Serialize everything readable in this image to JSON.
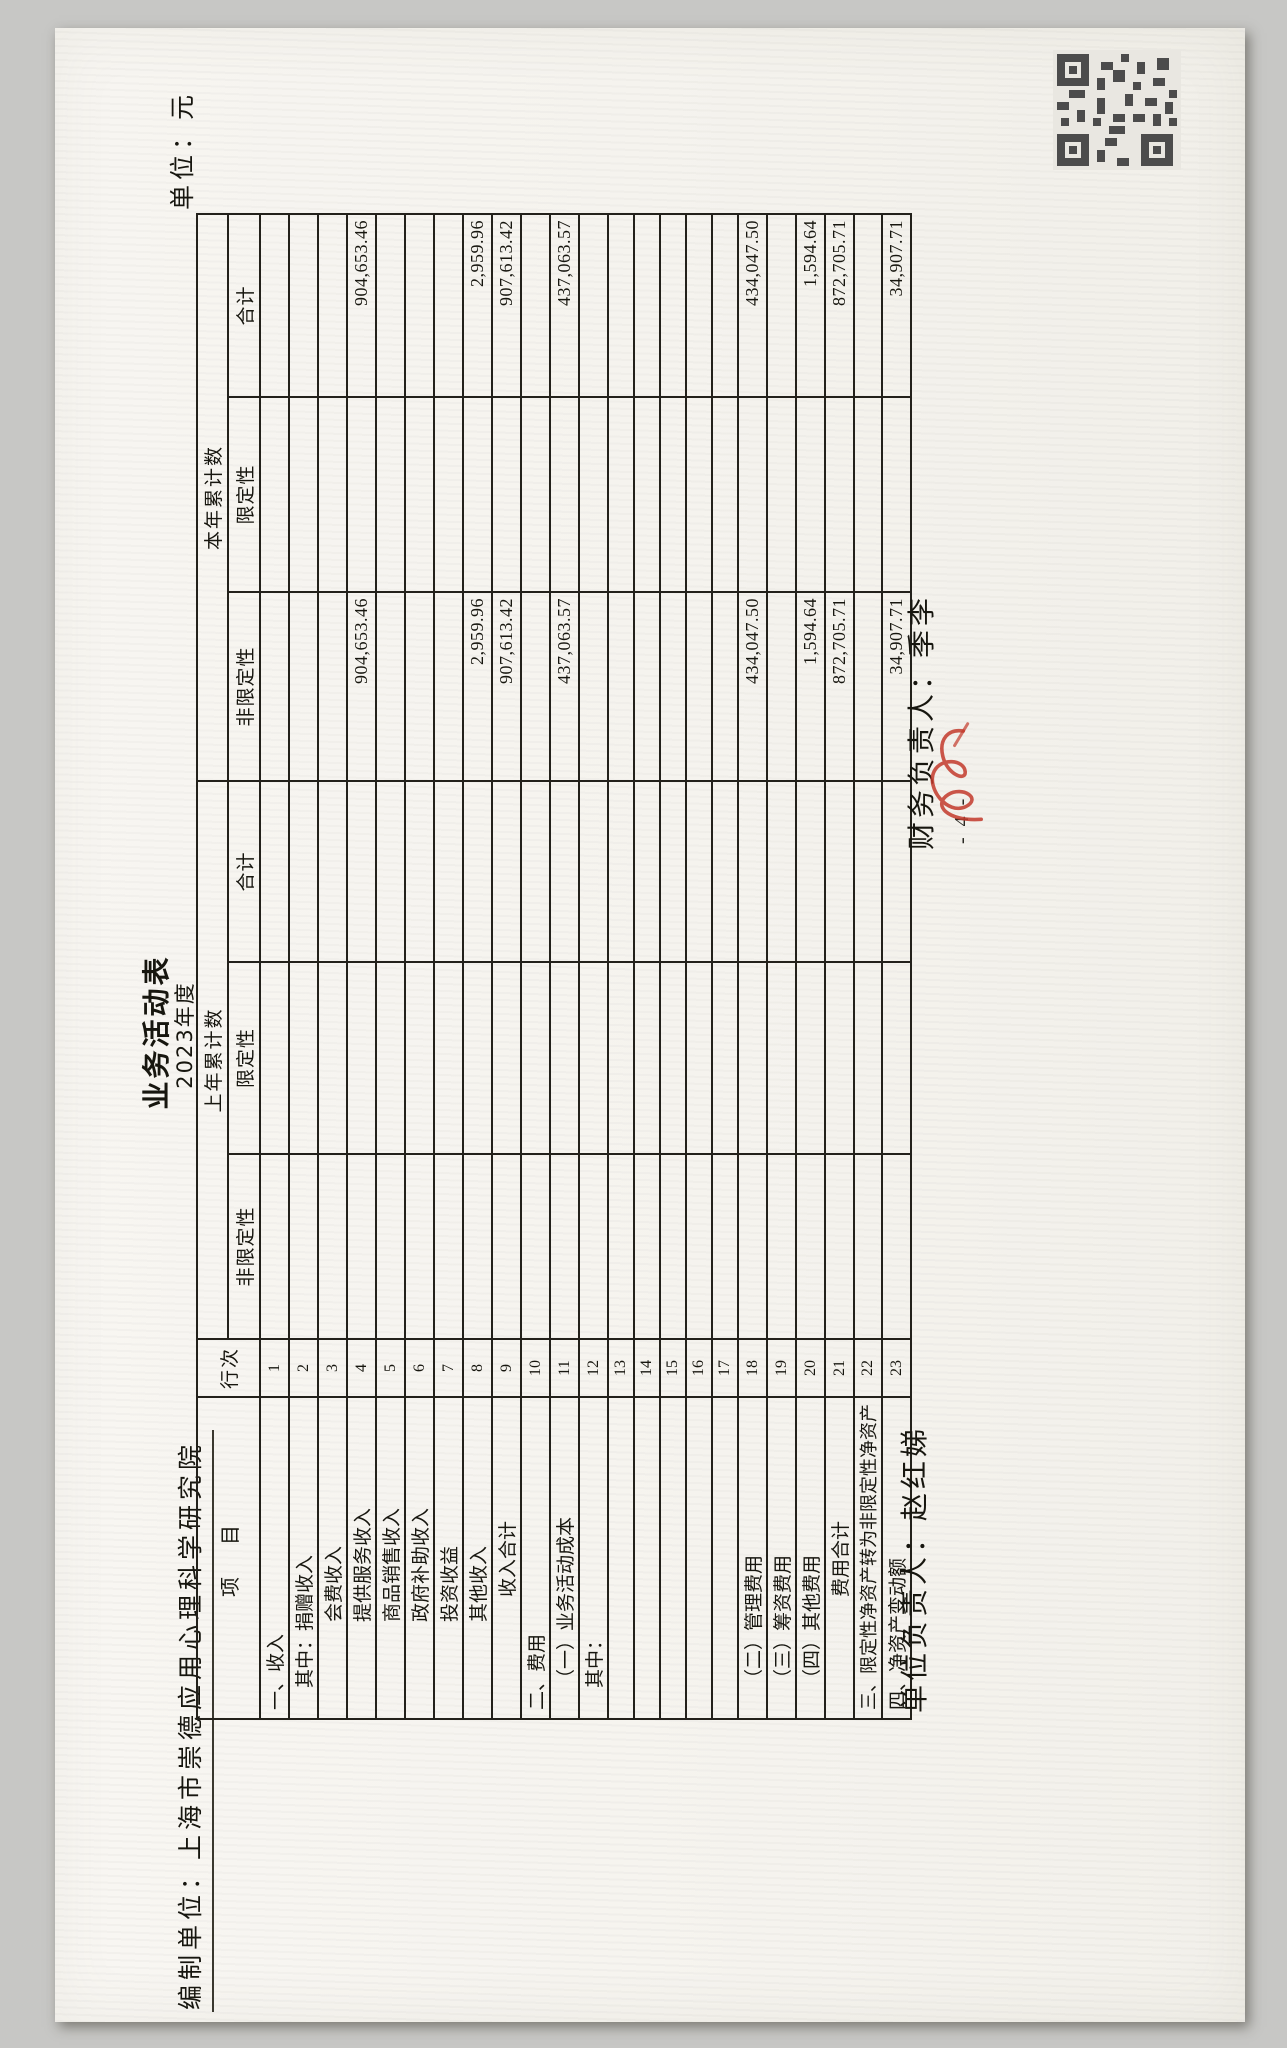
{
  "page": {
    "title": "业务活动表",
    "subtitle": "2023年度",
    "prepared_by_label": "编制单位：",
    "prepared_by": "上海市崇德应用心理科学研究院",
    "unit_note": "单位：元",
    "page_number": "- 4 -"
  },
  "table": {
    "headers": {
      "item": "项　目",
      "line_no": "行次",
      "prior_year_group": "上年累计数",
      "current_year_group": "本年累计数",
      "unrestricted": "非限定性",
      "restricted": "限定性",
      "total": "合计"
    },
    "rows": [
      {
        "no": "1",
        "label": "一、收入",
        "indent": 0,
        "center": false,
        "cells": [
          "",
          "",
          "",
          "",
          "",
          ""
        ]
      },
      {
        "no": "2",
        "label": "其中：捐赠收入",
        "indent": 22,
        "center": false,
        "cells": [
          "",
          "",
          "",
          "",
          "",
          ""
        ]
      },
      {
        "no": "3",
        "label": "会费收入",
        "indent": 88,
        "center": false,
        "cells": [
          "",
          "",
          "",
          "",
          "",
          ""
        ]
      },
      {
        "no": "4",
        "label": "提供服务收入",
        "indent": 88,
        "center": false,
        "cells": [
          "",
          "",
          "",
          "904,653.46",
          "",
          "904,653.46"
        ]
      },
      {
        "no": "5",
        "label": "商品销售收入",
        "indent": 88,
        "center": false,
        "cells": [
          "",
          "",
          "",
          "",
          "",
          ""
        ]
      },
      {
        "no": "6",
        "label": "政府补助收入",
        "indent": 88,
        "center": false,
        "cells": [
          "",
          "",
          "",
          "",
          "",
          ""
        ]
      },
      {
        "no": "7",
        "label": "投资收益",
        "indent": 88,
        "center": false,
        "cells": [
          "",
          "",
          "",
          "",
          "",
          ""
        ]
      },
      {
        "no": "8",
        "label": "其他收入",
        "indent": 88,
        "center": false,
        "cells": [
          "",
          "",
          "",
          "2,959.96",
          "",
          "2,959.96"
        ]
      },
      {
        "no": "9",
        "label": "收入合计",
        "indent": 0,
        "center": true,
        "cells": [
          "",
          "",
          "",
          "907,613.42",
          "",
          "907,613.42"
        ]
      },
      {
        "no": "10",
        "label": "二、费用",
        "indent": 0,
        "center": false,
        "cells": [
          "",
          "",
          "",
          "",
          "",
          ""
        ]
      },
      {
        "no": "11",
        "label": "（一）业务活动成本",
        "indent": 22,
        "center": false,
        "cells": [
          "",
          "",
          "",
          "437,063.57",
          "",
          "437,063.57"
        ]
      },
      {
        "no": "12",
        "label": "其中：",
        "indent": 22,
        "center": false,
        "cells": [
          "",
          "",
          "",
          "",
          "",
          ""
        ]
      },
      {
        "no": "13",
        "label": "",
        "indent": 0,
        "center": false,
        "cells": [
          "",
          "",
          "",
          "",
          "",
          ""
        ]
      },
      {
        "no": "14",
        "label": "",
        "indent": 0,
        "center": false,
        "cells": [
          "",
          "",
          "",
          "",
          "",
          ""
        ]
      },
      {
        "no": "15",
        "label": "",
        "indent": 0,
        "center": false,
        "cells": [
          "",
          "",
          "",
          "",
          "",
          ""
        ]
      },
      {
        "no": "16",
        "label": "",
        "indent": 0,
        "center": false,
        "cells": [
          "",
          "",
          "",
          "",
          "",
          ""
        ]
      },
      {
        "no": "17",
        "label": "",
        "indent": 0,
        "center": false,
        "cells": [
          "",
          "",
          "",
          "",
          "",
          ""
        ]
      },
      {
        "no": "18",
        "label": "（二）管理费用",
        "indent": 22,
        "center": false,
        "cells": [
          "",
          "",
          "",
          "434,047.50",
          "",
          "434,047.50"
        ]
      },
      {
        "no": "19",
        "label": "（三）筹资费用",
        "indent": 22,
        "center": false,
        "cells": [
          "",
          "",
          "",
          "",
          "",
          ""
        ]
      },
      {
        "no": "20",
        "label": "（四）其他费用",
        "indent": 22,
        "center": false,
        "cells": [
          "",
          "",
          "",
          "1,594.64",
          "",
          "1,594.64"
        ]
      },
      {
        "no": "21",
        "label": "费用合计",
        "indent": 0,
        "center": true,
        "cells": [
          "",
          "",
          "",
          "872,705.71",
          "",
          "872,705.71"
        ]
      },
      {
        "no": "22",
        "label": "三、限定性净资产转为非限定性净资产",
        "indent": 0,
        "center": false,
        "cells": [
          "",
          "",
          "",
          "",
          "",
          ""
        ]
      },
      {
        "no": "23",
        "label": "四、净资产变动额",
        "indent": 0,
        "center": false,
        "cells": [
          "",
          "",
          "",
          "34,907.71",
          "",
          "34,907.71"
        ]
      }
    ]
  },
  "footer": {
    "unit_head_label": "单位负责人：",
    "unit_head": "赵红娣",
    "finance_head_label": "财务负责人：",
    "finance_head": "季李"
  },
  "marks": {
    "red_annotation": "red-handwritten-scribble",
    "qr_stamp": "qr-code-stamp",
    "accent_red": "#c23a2b",
    "ink": "#23211b"
  }
}
